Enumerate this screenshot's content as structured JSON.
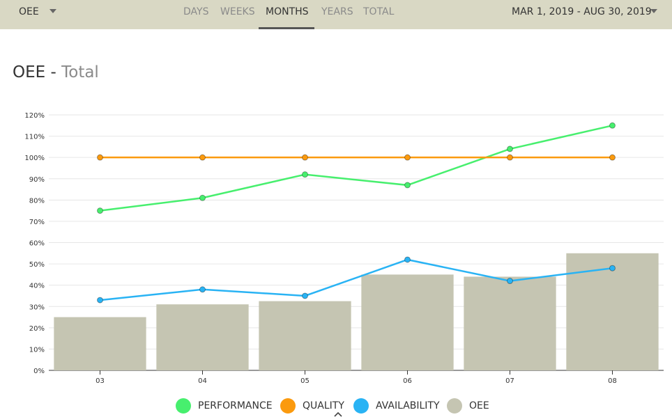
{
  "toolbar": {
    "metric_select": "OEE",
    "tabs": [
      "DAYS",
      "WEEKS",
      "MONTHS",
      "YEARS",
      "TOTAL"
    ],
    "active_tab": "MONTHS",
    "date_range": "MAR 1, 2019 - AUG 30, 2019"
  },
  "page": {
    "title_main": "OEE",
    "title_sep": "-",
    "title_sub": "Total"
  },
  "colors": {
    "topbar": "#d9d8c4",
    "performance": "#47ef6e",
    "quality": "#fb9a0e",
    "availability": "#29b3f4",
    "oee": "#c5c5b2"
  },
  "chart_data": {
    "type": "bar",
    "title": "",
    "xlabel": "",
    "ylabel": "",
    "categories": [
      "03",
      "04",
      "05",
      "06",
      "07",
      "08"
    ],
    "ylim": [
      0,
      120
    ],
    "yticks": [
      "0%",
      "10%",
      "20%",
      "30%",
      "40%",
      "50%",
      "60%",
      "70%",
      "80%",
      "90%",
      "100%",
      "110%",
      "120%"
    ],
    "grid": true,
    "legend_position": "bottom",
    "series": [
      {
        "name": "PERFORMANCE",
        "type": "line",
        "color": "#47ef6e",
        "values": [
          75,
          81,
          92,
          87,
          104,
          115
        ]
      },
      {
        "name": "QUALITY",
        "type": "line",
        "color": "#fb9a0e",
        "values": [
          100,
          100,
          100,
          100,
          100,
          100
        ]
      },
      {
        "name": "AVAILABILITY",
        "type": "line",
        "color": "#29b3f4",
        "values": [
          33,
          38,
          35,
          52,
          42,
          48
        ]
      },
      {
        "name": "OEE",
        "type": "bar",
        "color": "#c5c5b2",
        "values": [
          25,
          31,
          32.5,
          45,
          44,
          55
        ]
      }
    ]
  }
}
